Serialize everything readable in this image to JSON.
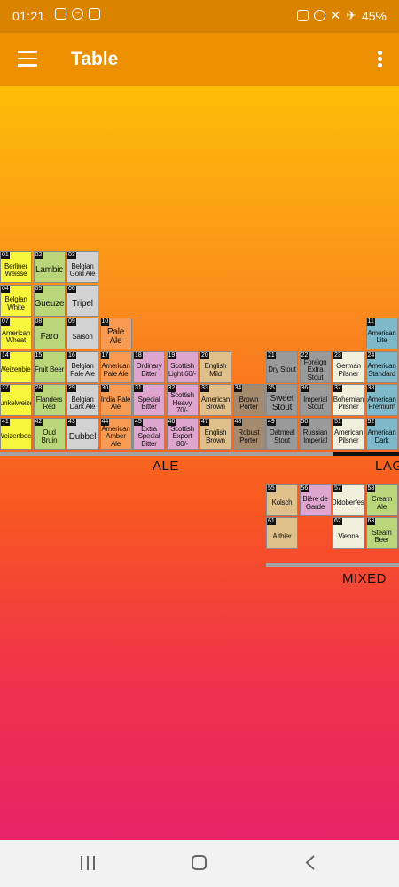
{
  "status_bar": {
    "time": "01:21",
    "battery": "45%",
    "left_icons": [
      "image-icon",
      "do-not-disturb-icon",
      "lock-icon"
    ],
    "right_icons": [
      "alarm-icon",
      "alarm-clock-icon",
      "mute-icon",
      "airplane-icon"
    ]
  },
  "app_bar": {
    "title": "Table"
  },
  "colors": {
    "yellow": "#f8f63c",
    "green": "#b9d77a",
    "light_gray": "#d2d2d2",
    "orange": "#f79a52",
    "pink": "#dea6cf",
    "tan": "#dfc08a",
    "brown": "#a68a6e",
    "dark_gray": "#9a9a9a",
    "cream": "#f1f0dc",
    "teal": "#7fb8c8"
  },
  "groups": {
    "ale": "ALE",
    "lager": "LAGER",
    "mixed": "MIXED"
  },
  "cells": [
    {
      "num": "01",
      "name": "Berliner Weisse",
      "color": "yellow",
      "col": 0,
      "row": 0
    },
    {
      "num": "02",
      "name": "Lambic",
      "color": "green",
      "col": 1,
      "row": 0,
      "big": true
    },
    {
      "num": "03",
      "name": "Belgian Gold Ale",
      "color": "light_gray",
      "col": 2,
      "row": 0
    },
    {
      "num": "04",
      "name": "Belgian White",
      "color": "yellow",
      "col": 0,
      "row": 1
    },
    {
      "num": "05",
      "name": "Gueuze",
      "color": "green",
      "col": 1,
      "row": 1,
      "big": true
    },
    {
      "num": "06",
      "name": "Tripel",
      "color": "light_gray",
      "col": 2,
      "row": 1,
      "big": true
    },
    {
      "num": "07",
      "name": "American Wheat",
      "color": "yellow",
      "col": 0,
      "row": 2
    },
    {
      "num": "08",
      "name": "Faro",
      "color": "green",
      "col": 1,
      "row": 2,
      "big": true
    },
    {
      "num": "09",
      "name": "Saison",
      "color": "light_gray",
      "col": 2,
      "row": 2
    },
    {
      "num": "10",
      "name": "Pale Ale",
      "color": "orange",
      "col": 3,
      "row": 2,
      "big": true
    },
    {
      "num": "11",
      "name": "American Lite",
      "color": "teal",
      "col": 11,
      "row": 2
    },
    {
      "num": "14",
      "name": "Weizenbier",
      "color": "yellow",
      "col": 0,
      "row": 3
    },
    {
      "num": "15",
      "name": "Fruit Beer",
      "color": "green",
      "col": 1,
      "row": 3
    },
    {
      "num": "16",
      "name": "Belgian Pale Ale",
      "color": "light_gray",
      "col": 2,
      "row": 3
    },
    {
      "num": "17",
      "name": "American Pale Ale",
      "color": "orange",
      "col": 3,
      "row": 3
    },
    {
      "num": "18",
      "name": "Ordinary Bitter",
      "color": "pink",
      "col": 4,
      "row": 3
    },
    {
      "num": "19",
      "name": "Scottish Light 60/-",
      "color": "pink",
      "col": 5,
      "row": 3
    },
    {
      "num": "20",
      "name": "English Mild",
      "color": "tan",
      "col": 6,
      "row": 3
    },
    {
      "num": "21",
      "name": "Dry Stout",
      "color": "dark_gray",
      "col": 8,
      "row": 3
    },
    {
      "num": "22",
      "name": "Foreign Extra Stout",
      "color": "dark_gray",
      "col": 9,
      "row": 3
    },
    {
      "num": "23",
      "name": "German Pilsner",
      "color": "cream",
      "col": 10,
      "row": 3
    },
    {
      "num": "24",
      "name": "American Standard",
      "color": "teal",
      "col": 11,
      "row": 3
    },
    {
      "num": "27",
      "name": "Dunkelweizen",
      "color": "yellow",
      "col": 0,
      "row": 4
    },
    {
      "num": "28",
      "name": "Flanders Red",
      "color": "green",
      "col": 1,
      "row": 4
    },
    {
      "num": "29",
      "name": "Belgian Dark Ale",
      "color": "light_gray",
      "col": 2,
      "row": 4
    },
    {
      "num": "30",
      "name": "India Pale Ale",
      "color": "orange",
      "col": 3,
      "row": 4
    },
    {
      "num": "31",
      "name": "Special Bitter",
      "color": "pink",
      "col": 4,
      "row": 4
    },
    {
      "num": "32",
      "name": "Scottish Heavy 70/-",
      "color": "pink",
      "col": 5,
      "row": 4
    },
    {
      "num": "33",
      "name": "American Brown",
      "color": "tan",
      "col": 6,
      "row": 4
    },
    {
      "num": "34",
      "name": "Brown Porter",
      "color": "brown",
      "col": 7,
      "row": 4
    },
    {
      "num": "35",
      "name": "Sweet Stout",
      "color": "dark_gray",
      "col": 8,
      "row": 4,
      "big": true
    },
    {
      "num": "36",
      "name": "Imperial Stout",
      "color": "dark_gray",
      "col": 9,
      "row": 4
    },
    {
      "num": "37",
      "name": "Bohemian Pilsner",
      "color": "cream",
      "col": 10,
      "row": 4
    },
    {
      "num": "38",
      "name": "American Premium",
      "color": "teal",
      "col": 11,
      "row": 4
    },
    {
      "num": "41",
      "name": "Weizenbock",
      "color": "yellow",
      "col": 0,
      "row": 5
    },
    {
      "num": "42",
      "name": "Oud Bruin",
      "color": "green",
      "col": 1,
      "row": 5
    },
    {
      "num": "43",
      "name": "Dubbel",
      "color": "light_gray",
      "col": 2,
      "row": 5,
      "big": true
    },
    {
      "num": "44",
      "name": "American Amber Ale",
      "color": "orange",
      "col": 3,
      "row": 5
    },
    {
      "num": "45",
      "name": "Extra Special Bitter",
      "color": "pink",
      "col": 4,
      "row": 5
    },
    {
      "num": "46",
      "name": "Scottish Export 80/-",
      "color": "pink",
      "col": 5,
      "row": 5
    },
    {
      "num": "47",
      "name": "English Brown",
      "color": "tan",
      "col": 6,
      "row": 5
    },
    {
      "num": "48",
      "name": "Robust Porter",
      "color": "brown",
      "col": 7,
      "row": 5
    },
    {
      "num": "49",
      "name": "Oatmeal Stout",
      "color": "dark_gray",
      "col": 8,
      "row": 5
    },
    {
      "num": "50",
      "name": "Russian Imperial",
      "color": "dark_gray",
      "col": 9,
      "row": 5
    },
    {
      "num": "51",
      "name": "American Pilsner",
      "color": "cream",
      "col": 10,
      "row": 5
    },
    {
      "num": "52",
      "name": "American Dark",
      "color": "teal",
      "col": 11,
      "row": 5
    },
    {
      "num": "55",
      "name": "Kolsch",
      "color": "tan",
      "col": 8,
      "row": 7
    },
    {
      "num": "56",
      "name": "Bière de Garde",
      "color": "pink",
      "col": 9,
      "row": 7
    },
    {
      "num": "57",
      "name": "Oktoberfest",
      "color": "cream",
      "col": 10,
      "row": 7
    },
    {
      "num": "58",
      "name": "Cream Ale",
      "color": "green",
      "col": 11,
      "row": 7
    },
    {
      "num": "61",
      "name": "Altbier",
      "color": "tan",
      "col": 8,
      "row": 8
    },
    {
      "num": "62",
      "name": "Vienna",
      "color": "cream",
      "col": 10,
      "row": 8
    },
    {
      "num": "63",
      "name": "Steam Beer",
      "color": "green",
      "col": 11,
      "row": 8
    }
  ]
}
